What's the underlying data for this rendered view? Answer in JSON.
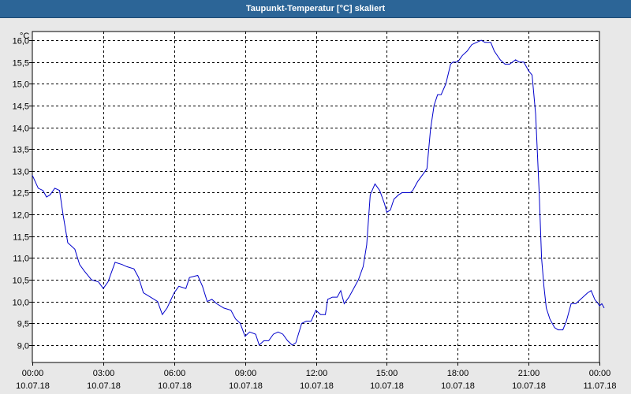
{
  "window": {
    "title": "Taupunkt-Temperatur [°C] skaliert"
  },
  "chart_data": {
    "type": "line",
    "title": "Taupunkt-Temperatur [°C] skaliert",
    "ylabel": "°C",
    "xlabel": "",
    "xlim": [
      0,
      24
    ],
    "ylim": [
      8.6,
      16.2
    ],
    "grid": true,
    "line_color": "#0000cc",
    "y_ticks": [
      "9,0",
      "9,5",
      "10,0",
      "10,5",
      "11,0",
      "11,5",
      "12,0",
      "12,5",
      "13,0",
      "13,5",
      "14,0",
      "14,5",
      "15,0",
      "15,5",
      "16,0"
    ],
    "x_ticks": [
      {
        "time": "00:00",
        "date": "10.07.18"
      },
      {
        "time": "03:00",
        "date": "10.07.18"
      },
      {
        "time": "06:00",
        "date": "10.07.18"
      },
      {
        "time": "09:00",
        "date": "10.07.18"
      },
      {
        "time": "12:00",
        "date": "10.07.18"
      },
      {
        "time": "15:00",
        "date": "10.07.18"
      },
      {
        "time": "18:00",
        "date": "10.07.18"
      },
      {
        "time": "21:00",
        "date": "10.07.18"
      },
      {
        "time": "00:00",
        "date": "11.07.18"
      }
    ],
    "series": [
      {
        "points": [
          [
            0.0,
            12.9
          ],
          [
            0.25,
            12.6
          ],
          [
            0.45,
            12.55
          ],
          [
            0.6,
            12.4
          ],
          [
            0.75,
            12.45
          ],
          [
            0.95,
            12.6
          ],
          [
            1.15,
            12.55
          ],
          [
            1.3,
            12.0
          ],
          [
            1.5,
            11.35
          ],
          [
            1.8,
            11.2
          ],
          [
            2.0,
            10.85
          ],
          [
            2.2,
            10.7
          ],
          [
            2.5,
            10.5
          ],
          [
            2.8,
            10.45
          ],
          [
            3.0,
            10.3
          ],
          [
            3.2,
            10.45
          ],
          [
            3.5,
            10.9
          ],
          [
            3.8,
            10.85
          ],
          [
            4.0,
            10.8
          ],
          [
            4.3,
            10.75
          ],
          [
            4.5,
            10.55
          ],
          [
            4.7,
            10.2
          ],
          [
            5.0,
            10.1
          ],
          [
            5.3,
            10.0
          ],
          [
            5.5,
            9.7
          ],
          [
            5.7,
            9.85
          ],
          [
            6.0,
            10.2
          ],
          [
            6.2,
            10.35
          ],
          [
            6.5,
            10.3
          ],
          [
            6.65,
            10.55
          ],
          [
            7.0,
            10.6
          ],
          [
            7.2,
            10.35
          ],
          [
            7.4,
            10.0
          ],
          [
            7.6,
            10.05
          ],
          [
            7.8,
            9.95
          ],
          [
            8.1,
            9.85
          ],
          [
            8.4,
            9.8
          ],
          [
            8.6,
            9.6
          ],
          [
            8.8,
            9.5
          ],
          [
            9.0,
            9.2
          ],
          [
            9.2,
            9.3
          ],
          [
            9.45,
            9.25
          ],
          [
            9.6,
            9.0
          ],
          [
            9.8,
            9.1
          ],
          [
            10.0,
            9.1
          ],
          [
            10.2,
            9.25
          ],
          [
            10.4,
            9.3
          ],
          [
            10.6,
            9.25
          ],
          [
            10.8,
            9.1
          ],
          [
            11.0,
            9.0
          ],
          [
            11.15,
            9.05
          ],
          [
            11.4,
            9.5
          ],
          [
            11.6,
            9.55
          ],
          [
            11.8,
            9.55
          ],
          [
            12.0,
            9.8
          ],
          [
            12.2,
            9.7
          ],
          [
            12.4,
            9.7
          ],
          [
            12.5,
            10.05
          ],
          [
            12.7,
            10.1
          ],
          [
            12.9,
            10.1
          ],
          [
            13.05,
            10.25
          ],
          [
            13.2,
            9.95
          ],
          [
            13.4,
            10.1
          ],
          [
            13.6,
            10.3
          ],
          [
            13.8,
            10.5
          ],
          [
            14.0,
            10.8
          ],
          [
            14.15,
            11.3
          ],
          [
            14.3,
            12.45
          ],
          [
            14.5,
            12.7
          ],
          [
            14.7,
            12.55
          ],
          [
            14.9,
            12.25
          ],
          [
            15.0,
            12.05
          ],
          [
            15.15,
            12.1
          ],
          [
            15.3,
            12.35
          ],
          [
            15.5,
            12.45
          ],
          [
            15.65,
            12.5
          ],
          [
            15.8,
            12.5
          ],
          [
            16.0,
            12.5
          ],
          [
            16.1,
            12.55
          ],
          [
            16.3,
            12.75
          ],
          [
            16.5,
            12.9
          ],
          [
            16.7,
            13.05
          ],
          [
            16.85,
            13.95
          ],
          [
            17.0,
            14.5
          ],
          [
            17.15,
            14.75
          ],
          [
            17.3,
            14.75
          ],
          [
            17.5,
            15.0
          ],
          [
            17.7,
            15.45
          ],
          [
            17.8,
            15.5
          ],
          [
            18.0,
            15.5
          ],
          [
            18.2,
            15.65
          ],
          [
            18.4,
            15.75
          ],
          [
            18.6,
            15.9
          ],
          [
            18.8,
            15.95
          ],
          [
            19.0,
            16.0
          ],
          [
            19.15,
            15.95
          ],
          [
            19.4,
            15.95
          ],
          [
            19.55,
            15.75
          ],
          [
            19.8,
            15.55
          ],
          [
            20.0,
            15.45
          ],
          [
            20.2,
            15.45
          ],
          [
            20.45,
            15.55
          ],
          [
            20.6,
            15.5
          ],
          [
            20.8,
            15.5
          ],
          [
            21.0,
            15.3
          ],
          [
            21.15,
            15.2
          ],
          [
            21.3,
            14.3
          ],
          [
            21.45,
            12.5
          ],
          [
            21.55,
            11.0
          ],
          [
            21.65,
            10.35
          ],
          [
            21.75,
            9.85
          ],
          [
            21.9,
            9.6
          ],
          [
            22.1,
            9.4
          ],
          [
            22.25,
            9.35
          ],
          [
            22.45,
            9.35
          ],
          [
            22.6,
            9.55
          ],
          [
            22.8,
            9.95
          ],
          [
            23.0,
            9.95
          ],
          [
            23.2,
            10.05
          ],
          [
            23.5,
            10.2
          ],
          [
            23.65,
            10.25
          ],
          [
            23.8,
            10.05
          ],
          [
            23.95,
            9.95
          ],
          [
            24.0,
            9.9
          ],
          [
            24.1,
            9.95
          ],
          [
            24.2,
            9.85
          ]
        ]
      }
    ]
  }
}
